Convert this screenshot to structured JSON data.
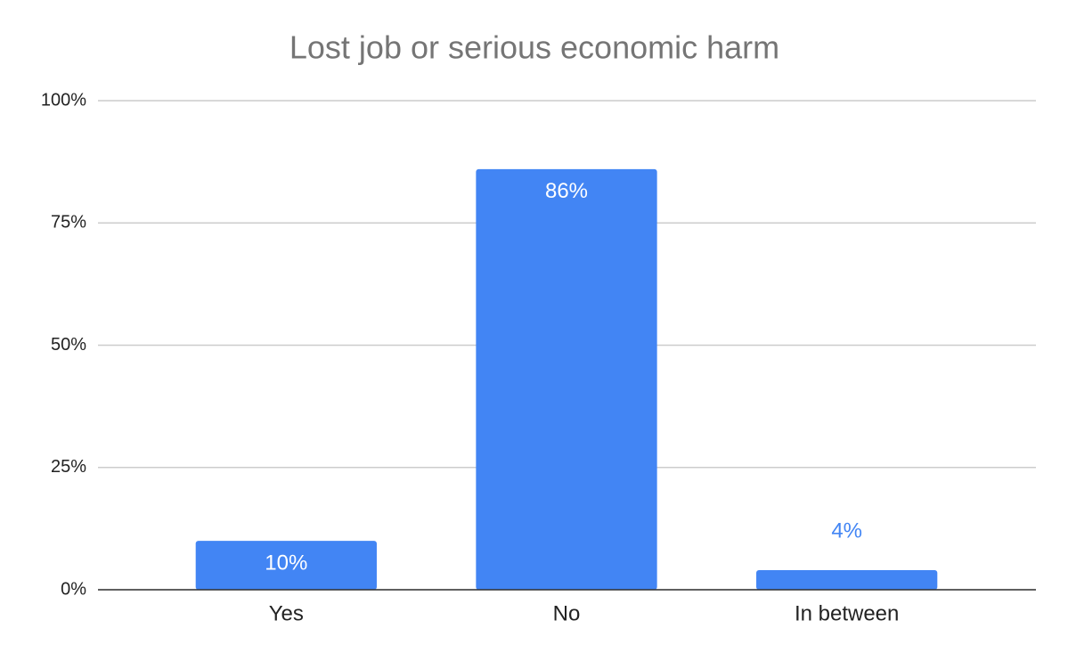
{
  "chart_data": {
    "type": "bar",
    "title": "Lost job or serious economic harm",
    "categories": [
      "Yes",
      "No",
      "In between"
    ],
    "values": [
      10,
      86,
      4
    ],
    "value_labels": [
      "10%",
      "86%",
      "4%"
    ],
    "color": "#4285f4",
    "ylim": [
      0,
      100
    ],
    "yticks": [
      {
        "value": 0,
        "label": "0%"
      },
      {
        "value": 25,
        "label": "25%"
      },
      {
        "value": 50,
        "label": "50%"
      },
      {
        "value": 75,
        "label": "75%"
      },
      {
        "value": 100,
        "label": "100%"
      }
    ],
    "grid": true
  }
}
